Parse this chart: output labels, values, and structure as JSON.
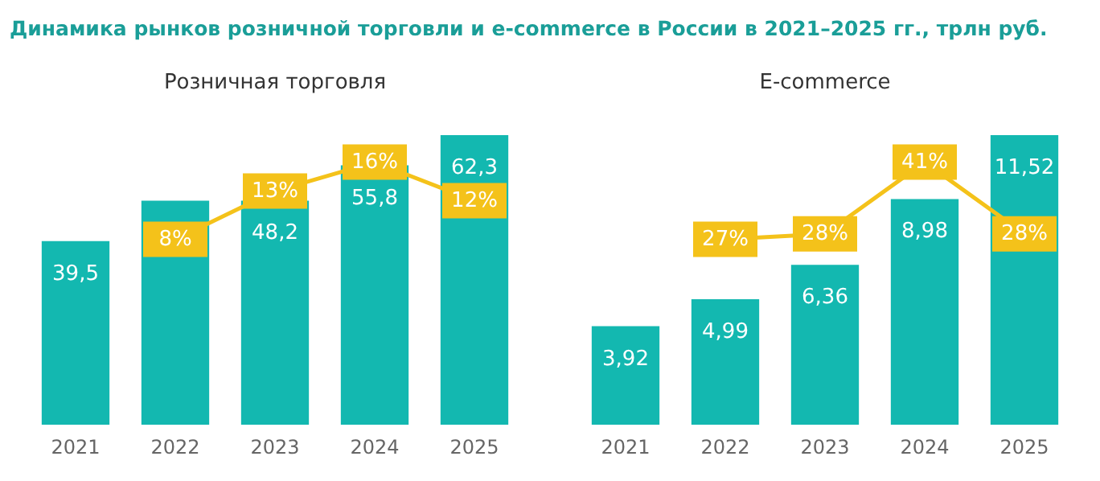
{
  "chart_data": [
    {
      "type": "bar",
      "title": "Динамика рынков розничной торговли и e-commerce в России в 2021–2025 гг., трлн руб.",
      "subtitle": "Розничная торговля",
      "categories": [
        "2021",
        "2022",
        "2023",
        "2024",
        "2025"
      ],
      "tick_labels": "x",
      "grid": false,
      "series": [
        {
          "color": "#13b8b0",
          "values": [
            39.5,
            48.2,
            48.2,
            55.8,
            62.3
          ],
          "value_labels": [
            "39,5",
            null,
            "48,2",
            "55,8",
            "62,3"
          ]
        },
        {
          "type": "line",
          "axis": "y2",
          "color": "#f4c21a",
          "marker": "square",
          "values": [
            null,
            8,
            13,
            16,
            12
          ],
          "value_labels": [
            null,
            "8%",
            "13%",
            "16%",
            "12%"
          ]
        }
      ]
    },
    {
      "type": "bar",
      "title": "E-commerce",
      "categories": [
        "2021",
        "2022",
        "2023",
        "2024",
        "2025"
      ],
      "tick_labels": "x",
      "grid": false,
      "series": [
        {
          "color": "#13b8b0",
          "values": [
            3.92,
            4.99,
            6.36,
            8.98,
            11.52
          ],
          "value_labels": [
            "3,92",
            "4,99",
            "6,36",
            "8,98",
            "11,52"
          ]
        },
        {
          "type": "line",
          "axis": "y2",
          "color": "#f4c21a",
          "marker": "square",
          "values": [
            null,
            27,
            28,
            41,
            28
          ],
          "value_labels": [
            null,
            "27%",
            "28%",
            "41%",
            "28%"
          ]
        }
      ]
    }
  ]
}
